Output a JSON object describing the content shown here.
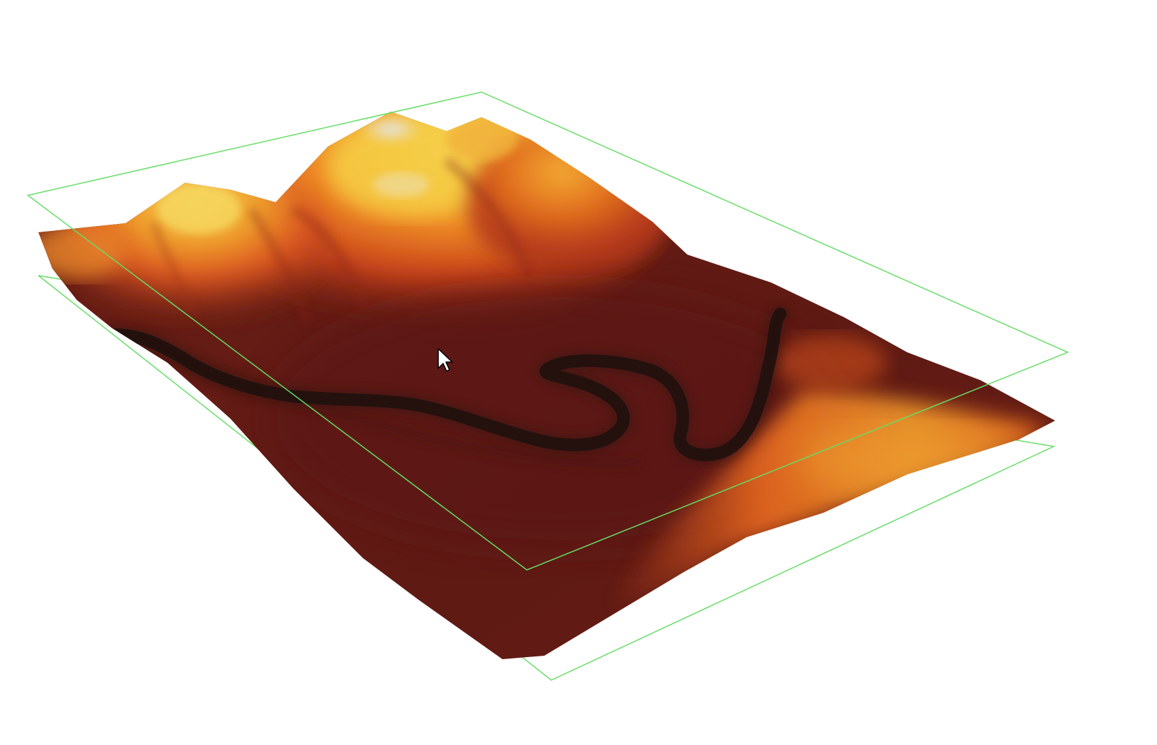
{
  "viewer": {
    "background_color": "#ffffff",
    "bounding_box_color": "#66dd66",
    "colormap": [
      "#2a0f0d",
      "#5a1a12",
      "#7a2414",
      "#b2361a",
      "#de5a1f",
      "#f08a24",
      "#f6b830",
      "#f4dc58",
      "#e8e6e2"
    ],
    "river_color": "#1e0f0f",
    "terrain_base_color": "#6a1e16"
  },
  "cursor": {
    "icon": "mouse-pointer-icon"
  }
}
